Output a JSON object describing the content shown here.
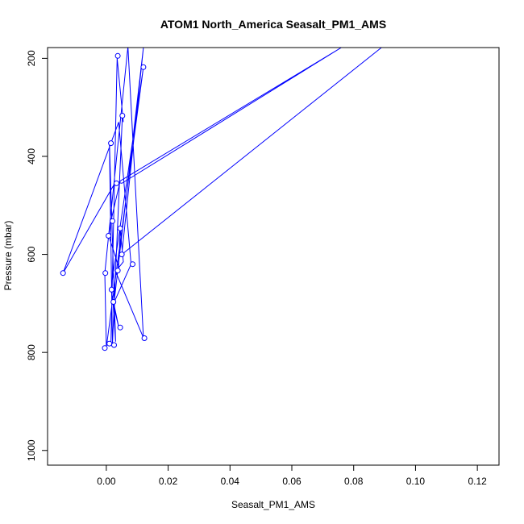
{
  "chart_data": {
    "type": "line",
    "title": "ATOM1 North_America Seasalt_PM1_AMS",
    "xlabel": "Seasalt_PM1_AMS",
    "ylabel": "Pressure (mbar)",
    "xlim": [
      -0.019,
      0.127
    ],
    "ylim": [
      1030,
      178
    ],
    "y_reversed": true,
    "x_ticks": [
      0.0,
      0.02,
      0.04,
      0.06,
      0.08,
      0.1,
      0.12
    ],
    "x_tick_labels": [
      "0.00",
      "0.02",
      "0.04",
      "0.06",
      "0.08",
      "0.10",
      "0.12"
    ],
    "y_ticks": [
      200,
      400,
      600,
      800,
      1000
    ],
    "y_tick_labels": [
      "200",
      "400",
      "600",
      "800",
      "1000"
    ],
    "grid": false,
    "series": [
      {
        "color": "#0000ff",
        "marker": "open-circle",
        "points": [
          {
            "x": 0.0015,
            "y": 784
          },
          {
            "x": 0.0035,
            "y": 200
          },
          {
            "x": 0.0055,
            "y": 330
          },
          {
            "x": 0.0052,
            "y": 317
          },
          {
            "x": 0.002,
            "y": 783
          },
          {
            "x": 0.001,
            "y": 372
          },
          {
            "x": 0.003,
            "y": 778
          },
          {
            "x": 0.0022,
            "y": 700
          },
          {
            "x": 0.004,
            "y": 748
          },
          {
            "x": 0.0015,
            "y": 672
          },
          {
            "x": 0.012,
            "y": 218
          },
          {
            "x": 0.0,
            "y": 790
          },
          {
            "x": -0.0005,
            "y": 638
          },
          {
            "x": 0.007,
            "y": 176
          },
          {
            "x": 0.012,
            "y": 770
          },
          {
            "x": 0.003,
            "y": 635
          },
          {
            "x": 0.0055,
            "y": 615
          },
          {
            "x": 0.0045,
            "y": 548
          },
          {
            "x": 0.004,
            "y": 625
          },
          {
            "x": 0.0008,
            "y": 562
          },
          {
            "x": 0.0015,
            "y": 532
          },
          {
            "x": 0.0045,
            "y": 450
          },
          {
            "x": 0.076,
            "y": 178
          },
          {
            "x": 0.005,
            "y": 455
          },
          {
            "x": 0.003,
            "y": 452
          },
          {
            "x": -0.014,
            "y": 638
          },
          {
            "x": 0.004,
            "y": 330
          },
          {
            "x": 0.008,
            "y": 620
          },
          {
            "x": 0.0025,
            "y": 698
          },
          {
            "x": 0.012,
            "y": 178
          },
          {
            "x": 0.005,
            "y": 600
          },
          {
            "x": 0.089,
            "y": 178
          }
        ],
        "markers": [
          {
            "x": 0.0037,
            "y": 195
          },
          {
            "x": 0.012,
            "y": 218
          },
          {
            "x": 0.0052,
            "y": 317
          },
          {
            "x": 0.0015,
            "y": 373
          },
          {
            "x": 0.0033,
            "y": 455
          },
          {
            "x": 0.002,
            "y": 532
          },
          {
            "x": 0.0045,
            "y": 547
          },
          {
            "x": 0.0007,
            "y": 562
          },
          {
            "x": 0.005,
            "y": 600
          },
          {
            "x": 0.0085,
            "y": 620
          },
          {
            "x": 0.0037,
            "y": 633
          },
          {
            "x": -0.014,
            "y": 638
          },
          {
            "x": -0.0003,
            "y": 638
          },
          {
            "x": 0.0017,
            "y": 672
          },
          {
            "x": 0.0023,
            "y": 697
          },
          {
            "x": 0.0045,
            "y": 749
          },
          {
            "x": 0.0123,
            "y": 771
          },
          {
            "x": 0.001,
            "y": 782
          },
          {
            "x": 0.0025,
            "y": 785
          },
          {
            "x": -0.0005,
            "y": 791
          }
        ]
      }
    ]
  }
}
